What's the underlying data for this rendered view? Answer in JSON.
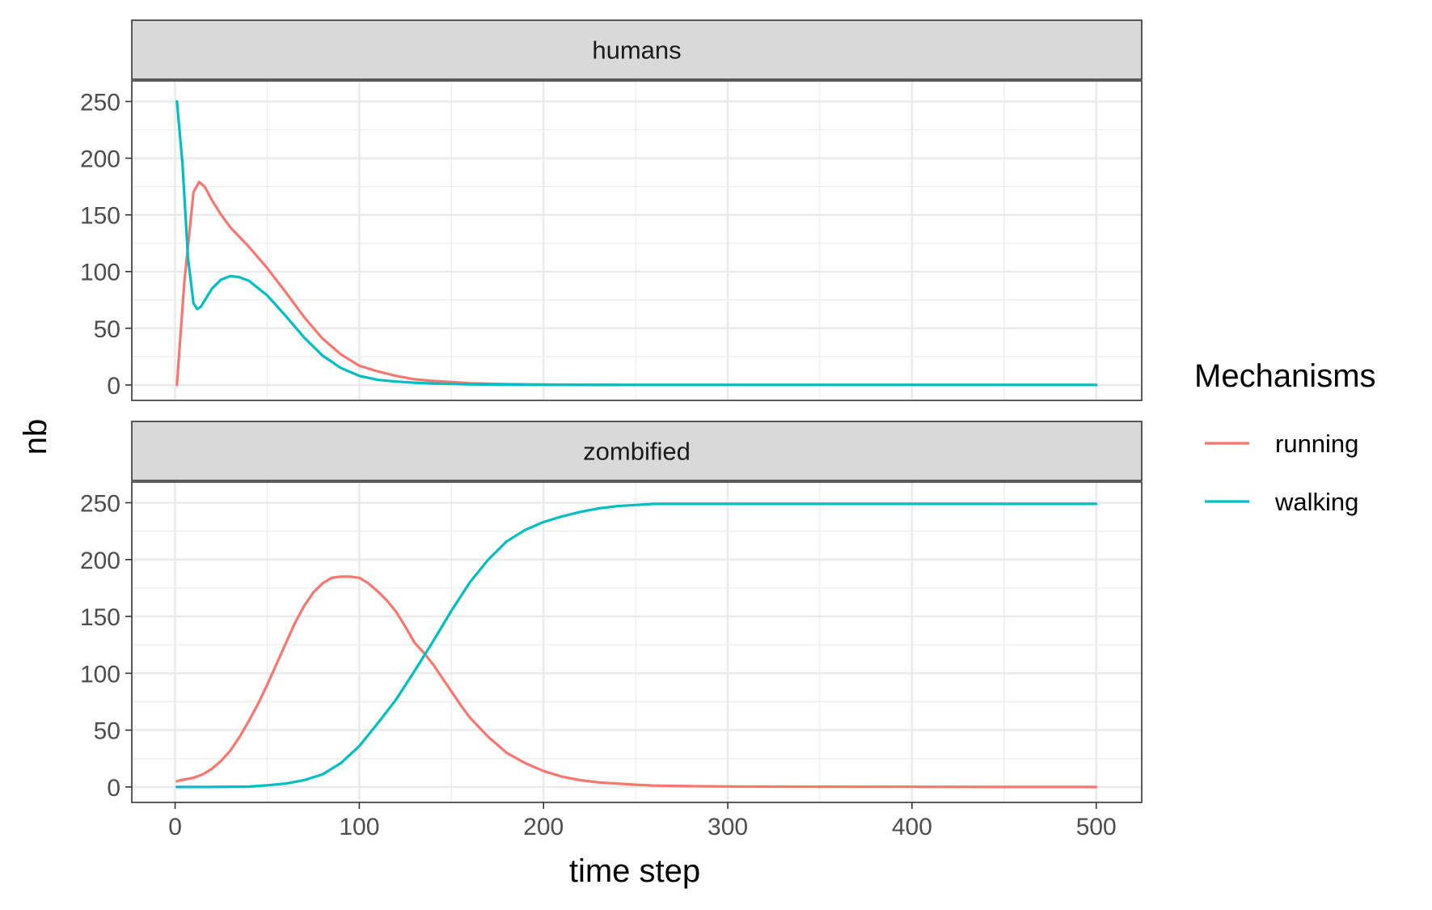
{
  "chart_data": {
    "type": "line",
    "xlabel": "time step",
    "ylabel": "nb",
    "xlim": [
      0,
      500
    ],
    "ylim": [
      0,
      250
    ],
    "x_ticks": [
      0,
      100,
      200,
      300,
      400,
      500
    ],
    "y_ticks": [
      0,
      50,
      100,
      150,
      200,
      250
    ],
    "grid": true,
    "legend": {
      "title": "Mechanisms",
      "position": "right",
      "entries": [
        {
          "name": "running",
          "color": "#F8766D"
        },
        {
          "name": "walking",
          "color": "#00BFC4"
        }
      ]
    },
    "facets": [
      {
        "label": "humans",
        "series": [
          {
            "name": "running",
            "color": "#F8766D",
            "x": [
              1,
              5,
              10,
              13,
              16,
              20,
              25,
              30,
              40,
              50,
              60,
              70,
              80,
              90,
              100,
              110,
              120,
              130,
              140,
              150,
              160,
              170,
              180,
              200,
              250,
              300,
              400,
              500
            ],
            "y": [
              0,
              90,
              170,
              179,
              175,
              163,
              150,
              139,
              122,
              103,
              82,
              60,
              41,
              27,
              17,
              12,
              8,
              5,
              3.5,
              2.5,
              1.6,
              1.1,
              0.8,
              0.4,
              0.1,
              0,
              0,
              0
            ]
          },
          {
            "name": "walking",
            "color": "#00BFC4",
            "x": [
              1,
              4,
              7,
              10,
              12,
              14,
              17,
              20,
              25,
              30,
              35,
              40,
              50,
              60,
              70,
              80,
              90,
              100,
              110,
              120,
              130,
              140,
              150,
              160,
              180,
              200,
              250,
              300,
              400,
              500
            ],
            "y": [
              250,
              195,
              112,
              72,
              67,
              69,
              77,
              85,
              93,
              96,
              95,
              92,
              79,
              61,
              42,
              26,
              15,
              8,
              4.5,
              3,
              2,
              1.3,
              1,
              0.6,
              0.3,
              0.1,
              0,
              0,
              0,
              0
            ]
          }
        ]
      },
      {
        "label": "zombified",
        "series": [
          {
            "name": "running",
            "color": "#F8766D",
            "x": [
              1,
              3,
              10,
              15,
              20,
              25,
              30,
              35,
              40,
              45,
              50,
              55,
              60,
              65,
              70,
              75,
              80,
              85,
              90,
              95,
              100,
              105,
              110,
              115,
              120,
              125,
              130,
              135,
              140,
              145,
              150,
              155,
              160,
              170,
              180,
              190,
              200,
              210,
              220,
              230,
              240,
              250,
              260,
              280,
              300,
              350,
              400,
              450,
              500
            ],
            "y": [
              5,
              6,
              8,
              11,
              16,
              23,
              32,
              44,
              58,
              73,
              90,
              108,
              126,
              144,
              159,
              171,
              179,
              184,
              185,
              185,
              184,
              179,
              172,
              164,
              154,
              141,
              127,
              118,
              108,
              96,
              84,
              72,
              61,
              44,
              30,
              21,
              14,
              9,
              6,
              4,
              3,
              2,
              1.2,
              0.8,
              0.4,
              0.2,
              0.1,
              0,
              0
            ]
          },
          {
            "name": "walking",
            "color": "#00BFC4",
            "x": [
              1,
              20,
              40,
              50,
              60,
              70,
              80,
              90,
              100,
              110,
              120,
              130,
              140,
              150,
              160,
              170,
              180,
              190,
              200,
              210,
              220,
              230,
              240,
              250,
              260,
              270,
              300,
              350,
              400,
              450,
              500
            ],
            "y": [
              0,
              0,
              0.3,
              1.5,
              3,
              6,
              11,
              21,
              36,
              56,
              77,
              102,
              128,
              155,
              180,
              200,
              216,
              226,
              233,
              238,
              242,
              245,
              247,
              248,
              249,
              249,
              249,
              249,
              249,
              249,
              249
            ]
          }
        ]
      }
    ]
  }
}
